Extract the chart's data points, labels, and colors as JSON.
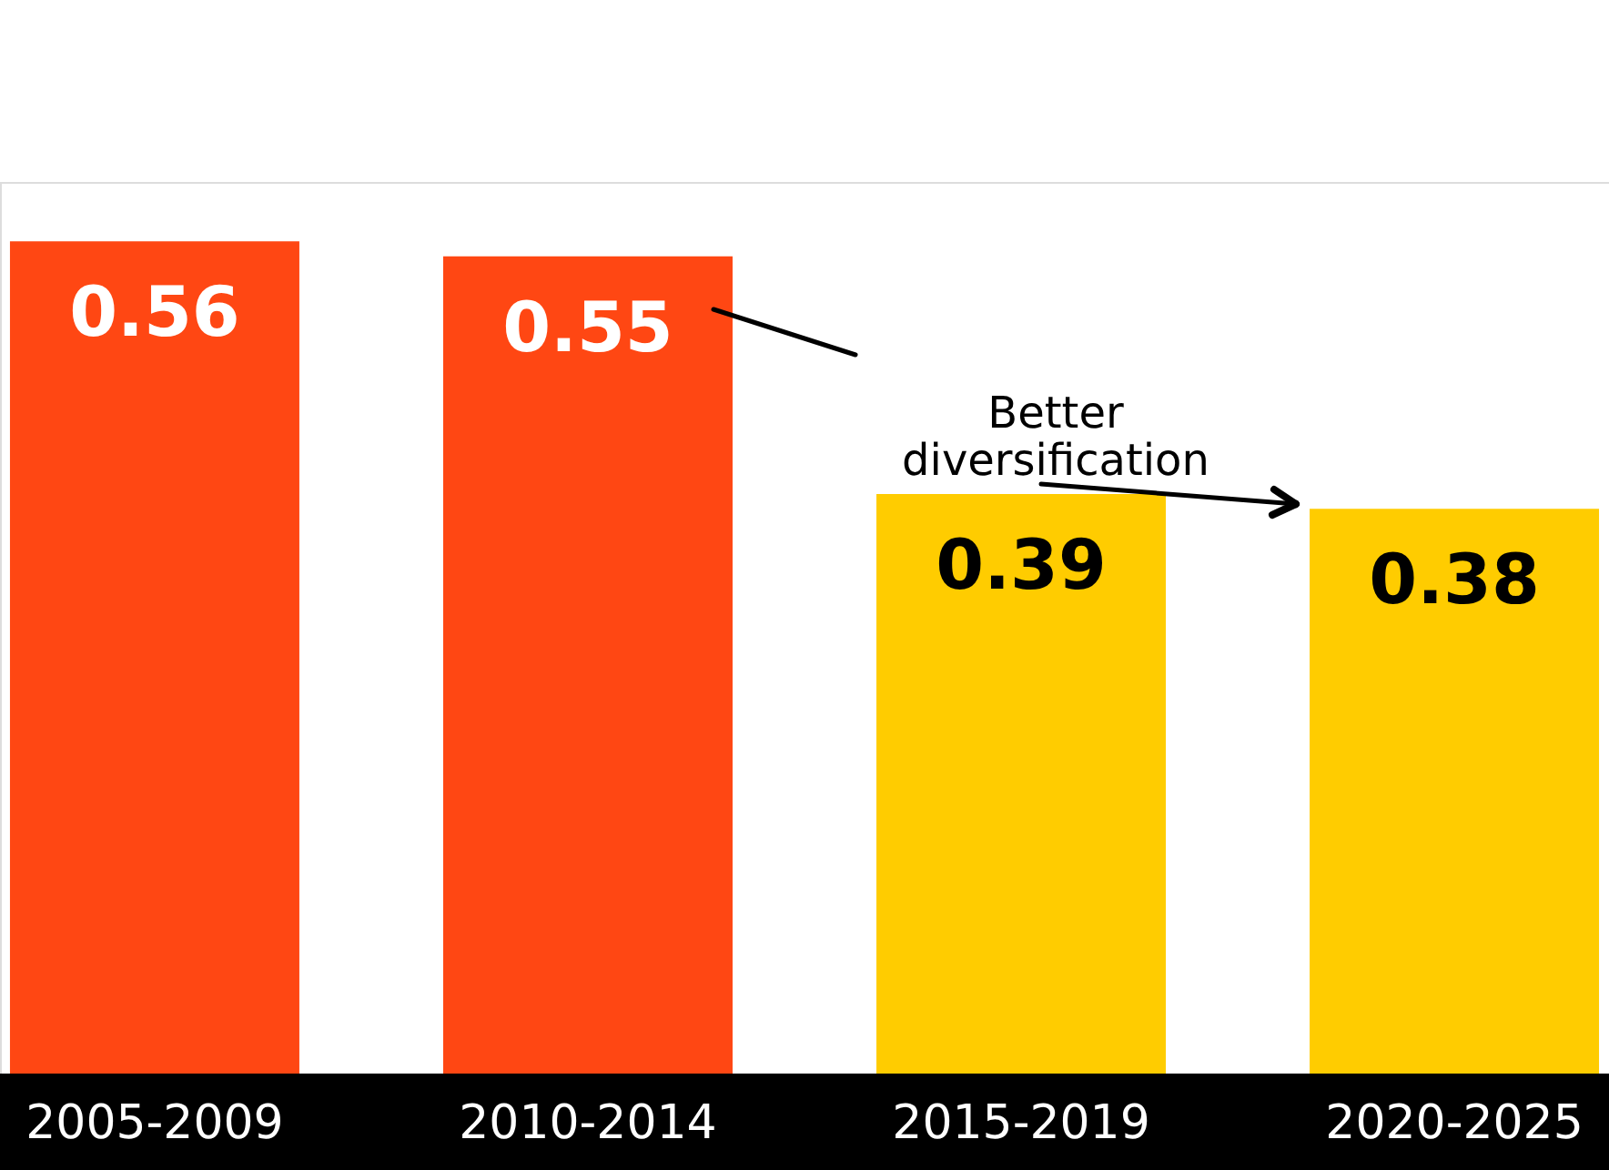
{
  "chart_data": {
    "type": "bar",
    "categories": [
      "2005-2009",
      "2010-2014",
      "2015-2019",
      "2020-2025"
    ],
    "values": [
      0.56,
      0.55,
      0.39,
      0.38
    ],
    "colors": [
      "#ff4713",
      "#ff4713",
      "#ffcc00",
      "#ffcc00"
    ],
    "data_labels": true,
    "tick_labels": "x",
    "grid": false,
    "annotations": [
      "Better\ndiversification"
    ]
  }
}
